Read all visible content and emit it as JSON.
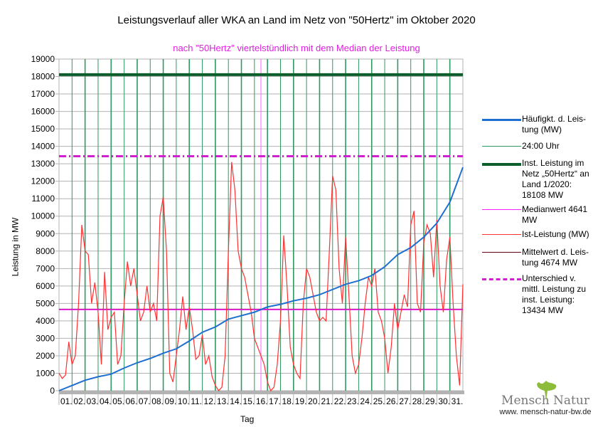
{
  "title": "Leistungsverlauf aller WKA an Land im Netz von \"50Hertz\" im Oktober 2020",
  "subtitle": "nach \"50Hertz\" viertelstündlich mit dem Median der Leistung",
  "logo": {
    "name": "Mensch Natur",
    "url": "www. mensch-natur-bw.de"
  },
  "chart_data": {
    "type": "line",
    "xlabel": "Tag",
    "ylabel": "Leistung in MW",
    "ylim": [
      0,
      19000
    ],
    "yticks": [
      "0",
      "1000",
      "2000",
      "3000",
      "4000",
      "5000",
      "6000",
      "7000",
      "8000",
      "9000",
      "10000",
      "11000",
      "12000",
      "13000",
      "14000",
      "15000",
      "16000",
      "17000",
      "18000",
      "19000"
    ],
    "x_tick_labels": [
      "01.",
      "02.",
      "03.",
      "04.",
      "05.",
      "06.",
      "07.",
      "08.",
      "09.",
      "10.",
      "11.",
      "12.",
      "13.",
      "14.",
      "15.",
      "16.",
      "17.",
      "18.",
      "19.",
      "20.",
      "21.",
      "22.",
      "23.",
      "24.",
      "25.",
      "26.",
      "27.",
      "28.",
      "29.",
      "30.",
      "31."
    ],
    "legend": [
      {
        "label": "Häufigkt. d. Leis-tung (MW)",
        "color": "#1f6fd0"
      },
      {
        "label": "24:00 Uhr",
        "color": "#2e9960"
      },
      {
        "label": "Inst. Leistung im Netz „50Hertz“ an Land 1/2020: 18108 MW",
        "color": "#0b5e2c"
      },
      {
        "label": "Medianwert 4641 MW",
        "color": "#ff20ff"
      },
      {
        "label": "Ist-Leistung (MW)",
        "color": "#ff3030"
      },
      {
        "label": "Mittelwert d. Leis-tung 4674 MW",
        "color": "#600010"
      },
      {
        "label": "Unterschied v. mittl. Leistung zu inst. Leistung: 13434 MW",
        "color": "#d020d0"
      }
    ],
    "hlines": {
      "installed": 18108,
      "median": 4641,
      "mean": 4674,
      "difference": 13434
    },
    "series": [
      {
        "name": "Ist-Leistung (MW)",
        "x_days_step": 0.25,
        "values": [
          1000,
          700,
          900,
          2800,
          1500,
          2000,
          5000,
          9500,
          8000,
          7800,
          5000,
          6200,
          4500,
          1500,
          6800,
          3500,
          4200,
          4500,
          1500,
          2000,
          5000,
          7400,
          6000,
          7000,
          5500,
          4000,
          4500,
          6000,
          4500,
          5000,
          4000,
          10000,
          11100,
          8000,
          1000,
          500,
          2000,
          3500,
          5400,
          3500,
          4800,
          3500,
          1800,
          2000,
          3200,
          1500,
          2000,
          800,
          300,
          0,
          200,
          2000,
          8000,
          13100,
          11500,
          8000,
          7000,
          6500,
          5500,
          4500,
          3000,
          2500,
          2000,
          1500,
          500,
          0,
          200,
          1500,
          4000,
          8900,
          6000,
          2500,
          1500,
          1000,
          700,
          5000,
          7000,
          6500,
          5500,
          4500,
          4000,
          4200,
          4000,
          8000,
          12300,
          11500,
          7000,
          5000,
          8800,
          5500,
          2000,
          1000,
          1500,
          3000,
          5000,
          6500,
          6000,
          7000,
          4500,
          4000,
          3000,
          1000,
          2500,
          5000,
          3500,
          4500,
          5500,
          4800,
          9500,
          10300,
          5000,
          4500,
          8500,
          9500,
          9000,
          6500,
          9800,
          6000,
          4500,
          7500,
          8800,
          5000,
          2000,
          300,
          6100
        ]
      },
      {
        "name": "Häufigkt. d. Leistung (MW)",
        "x_days_step": 1,
        "values": [
          0,
          300,
          600,
          800,
          950,
          1300,
          1600,
          1850,
          2150,
          2400,
          2850,
          3350,
          3650,
          4100,
          4300,
          4500,
          4800,
          4950,
          5150,
          5300,
          5500,
          5800,
          6100,
          6300,
          6600,
          7100,
          7800,
          8200,
          8800,
          9600,
          10800,
          12800
        ]
      }
    ]
  }
}
